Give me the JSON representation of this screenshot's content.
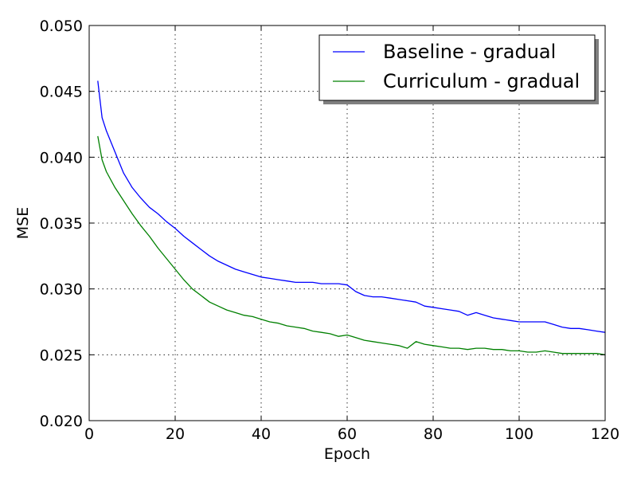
{
  "chart_data": {
    "type": "line",
    "title": "",
    "xlabel": "Epoch",
    "ylabel": "MSE",
    "xlim": [
      0,
      120
    ],
    "ylim": [
      0.02,
      0.05
    ],
    "xticks": [
      0,
      20,
      40,
      60,
      80,
      100,
      120
    ],
    "xtick_labels": [
      "0",
      "20",
      "40",
      "60",
      "80",
      "100",
      "120"
    ],
    "yticks": [
      0.02,
      0.025,
      0.03,
      0.035,
      0.04,
      0.045,
      0.05
    ],
    "ytick_labels": [
      "0.020",
      "0.025",
      "0.030",
      "0.035",
      "0.040",
      "0.045",
      "0.050"
    ],
    "grid": true,
    "legend_position": "top-right",
    "series": [
      {
        "name": "Baseline - gradual",
        "color": "#0000ff",
        "x": [
          2,
          3,
          4,
          6,
          8,
          10,
          12,
          14,
          16,
          18,
          20,
          22,
          24,
          26,
          28,
          30,
          32,
          34,
          36,
          38,
          40,
          42,
          44,
          46,
          48,
          50,
          52,
          54,
          56,
          58,
          60,
          62,
          64,
          66,
          68,
          70,
          72,
          74,
          76,
          78,
          80,
          82,
          84,
          86,
          88,
          90,
          92,
          94,
          96,
          98,
          100,
          102,
          104,
          106,
          108,
          110,
          112,
          114,
          116,
          118,
          120
        ],
        "y": [
          0.0458,
          0.043,
          0.042,
          0.0404,
          0.0388,
          0.0377,
          0.0369,
          0.0362,
          0.0357,
          0.0351,
          0.0346,
          0.034,
          0.0335,
          0.033,
          0.0325,
          0.0321,
          0.0318,
          0.0315,
          0.0313,
          0.0311,
          0.0309,
          0.0308,
          0.0307,
          0.0306,
          0.0305,
          0.0305,
          0.0305,
          0.0304,
          0.0304,
          0.0304,
          0.0303,
          0.0298,
          0.0295,
          0.0294,
          0.0294,
          0.0293,
          0.0292,
          0.0291,
          0.029,
          0.0287,
          0.0286,
          0.0285,
          0.0284,
          0.0283,
          0.028,
          0.0282,
          0.028,
          0.0278,
          0.0277,
          0.0276,
          0.0275,
          0.0275,
          0.0275,
          0.0275,
          0.0273,
          0.0271,
          0.027,
          0.027,
          0.0269,
          0.0268,
          0.0267
        ]
      },
      {
        "name": "Curriculum - gradual",
        "color": "#008000",
        "x": [
          2,
          3,
          4,
          6,
          8,
          10,
          12,
          14,
          16,
          18,
          20,
          22,
          24,
          26,
          28,
          30,
          32,
          34,
          36,
          38,
          40,
          42,
          44,
          46,
          48,
          50,
          52,
          54,
          56,
          58,
          60,
          62,
          64,
          66,
          68,
          70,
          72,
          74,
          76,
          78,
          80,
          82,
          84,
          86,
          88,
          90,
          92,
          94,
          96,
          98,
          100,
          102,
          104,
          106,
          108,
          110,
          112,
          114,
          116,
          118,
          120
        ],
        "y": [
          0.0416,
          0.0398,
          0.0389,
          0.0377,
          0.0367,
          0.0357,
          0.0348,
          0.034,
          0.0331,
          0.0323,
          0.0315,
          0.0307,
          0.03,
          0.0295,
          0.029,
          0.0287,
          0.0284,
          0.0282,
          0.028,
          0.0279,
          0.0277,
          0.0275,
          0.0274,
          0.0272,
          0.0271,
          0.027,
          0.0268,
          0.0267,
          0.0266,
          0.0264,
          0.0265,
          0.0263,
          0.0261,
          0.026,
          0.0259,
          0.0258,
          0.0257,
          0.0255,
          0.026,
          0.0258,
          0.0257,
          0.0256,
          0.0255,
          0.0255,
          0.0254,
          0.0255,
          0.0255,
          0.0254,
          0.0254,
          0.0253,
          0.0253,
          0.0252,
          0.0252,
          0.0253,
          0.0252,
          0.0251,
          0.0251,
          0.0251,
          0.0251,
          0.0251,
          0.025
        ]
      }
    ]
  }
}
